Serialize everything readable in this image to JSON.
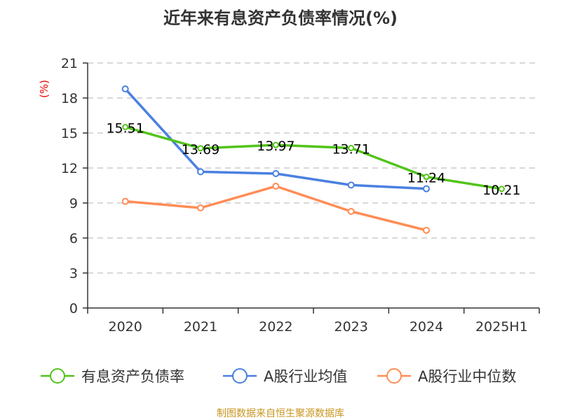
{
  "chart_data": {
    "type": "line",
    "title": "近年来有息资产负债率情况(%)",
    "ylabel": "(%)",
    "categories": [
      "2020",
      "2021",
      "2022",
      "2023",
      "2024",
      "2025H1"
    ],
    "ylim": [
      0,
      21
    ],
    "yticks": [
      0,
      3,
      6,
      9,
      12,
      15,
      18,
      21
    ],
    "grid": true,
    "legend_position": "bottom",
    "series": [
      {
        "name": "有息资产负债率",
        "color": "#52c41a",
        "values": [
          15.51,
          13.69,
          13.97,
          13.71,
          11.24,
          10.21
        ],
        "labels": [
          "15.51",
          "13.69",
          "13.97",
          "13.71",
          "11.24",
          "10.21"
        ]
      },
      {
        "name": "A股行业均值",
        "color": "#4a80e0",
        "values": [
          18.78,
          11.68,
          11.52,
          10.54,
          10.22,
          null
        ]
      },
      {
        "name": "A股行业中位数",
        "color": "#ff8c55",
        "values": [
          9.14,
          8.58,
          10.44,
          8.28,
          6.66,
          null
        ]
      }
    ]
  },
  "source": "制图数据来自恒生聚源数据库"
}
